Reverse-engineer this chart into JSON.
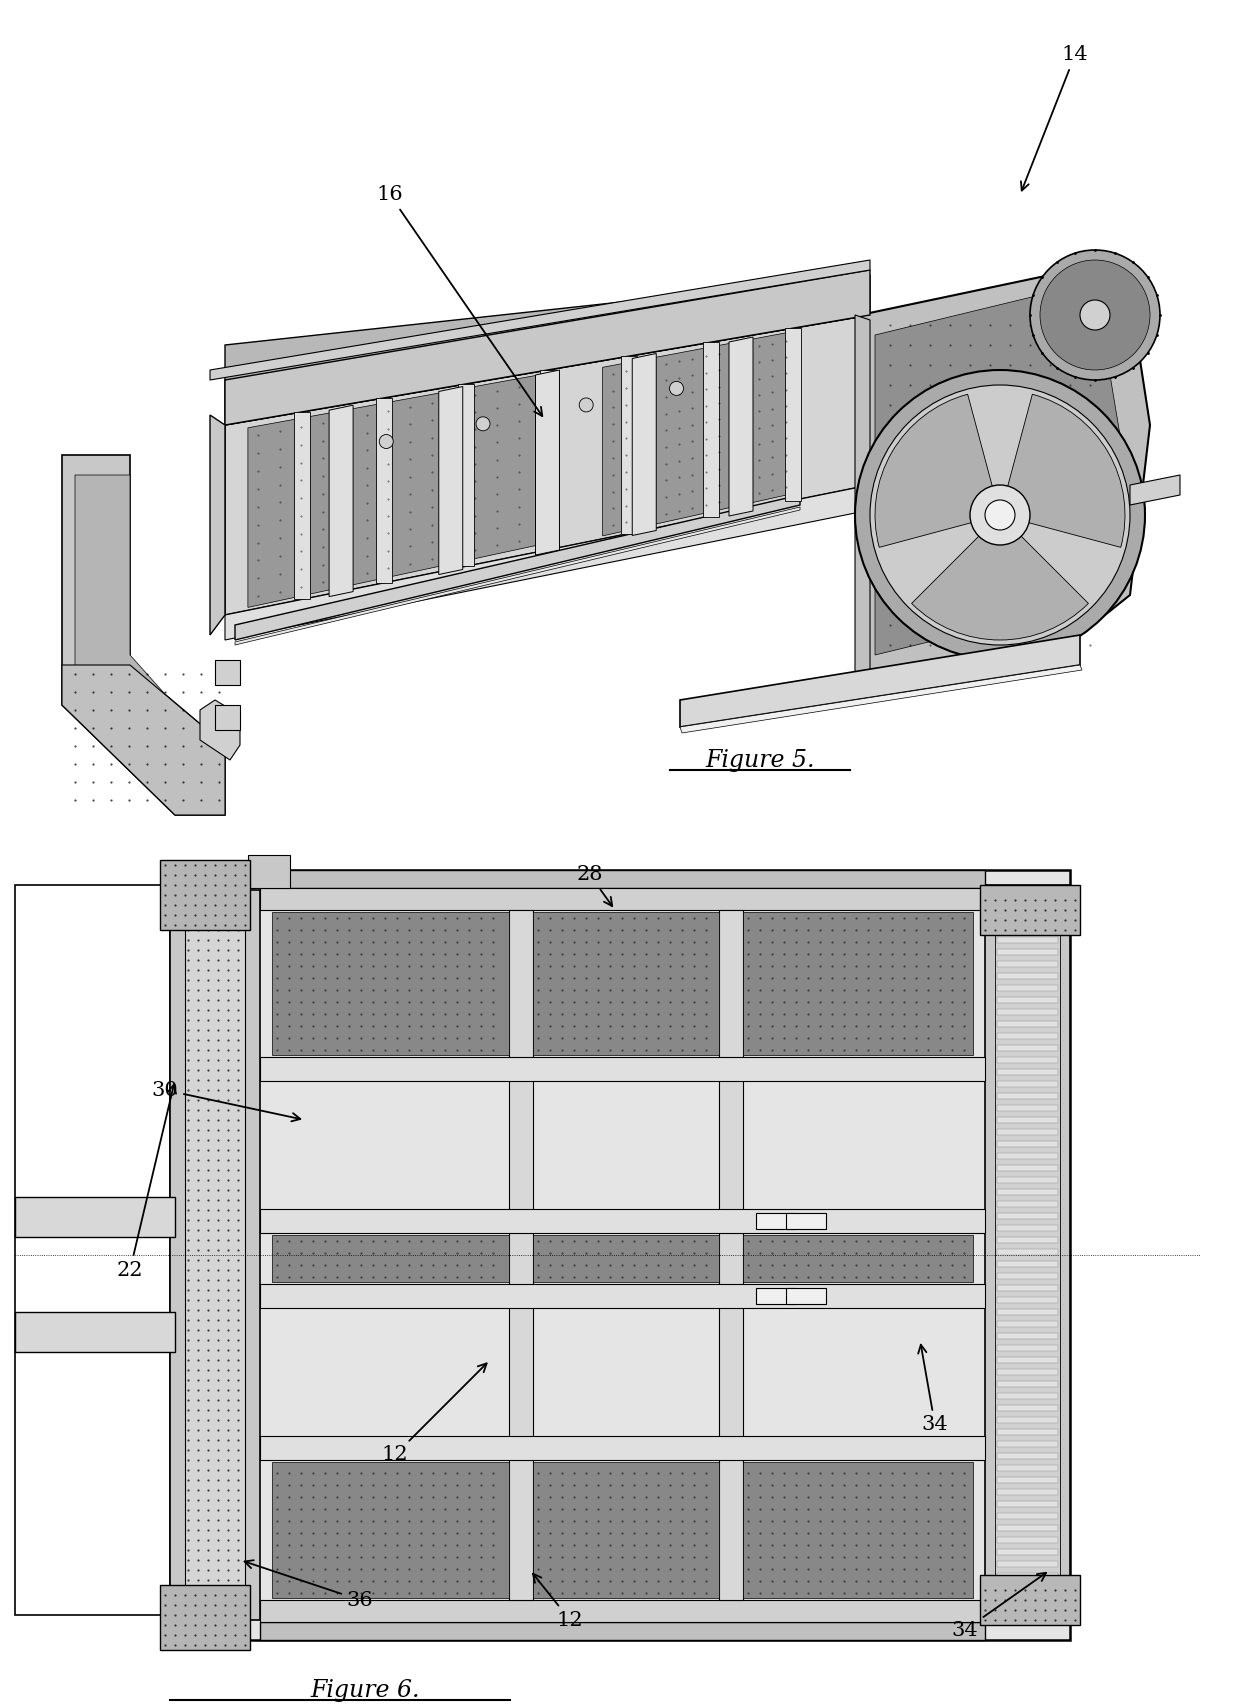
{
  "fig5_label": "Figure 5.",
  "fig6_label": "Figure 6.",
  "bg_color": "#ffffff",
  "line_color": "#000000",
  "gray_light": "#d8d8d8",
  "gray_mid": "#aaaaaa",
  "gray_dark": "#888888",
  "gray_stipple": "#999999"
}
